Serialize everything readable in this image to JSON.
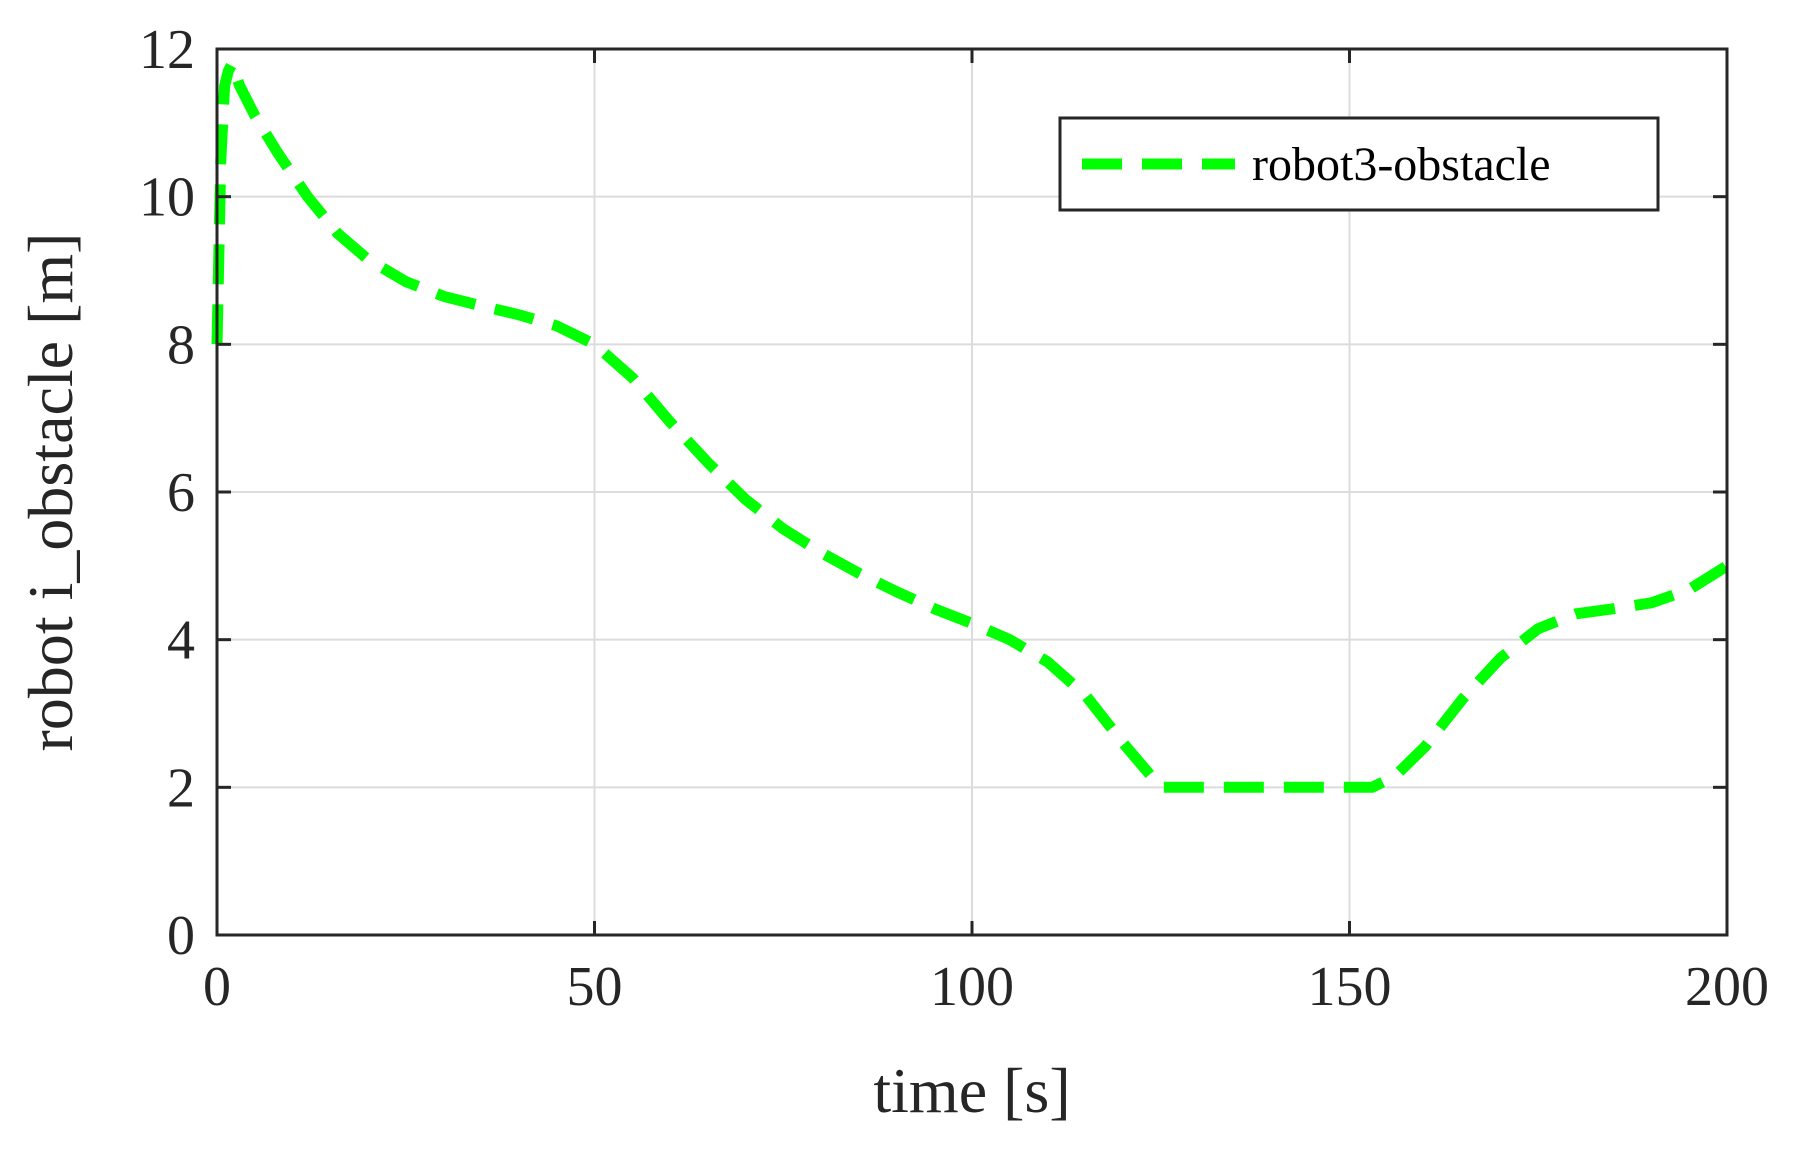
{
  "chart_data": {
    "type": "line",
    "title": "",
    "xlabel": "time [s]",
    "ylabel": "robot i_obstacle [m]",
    "xlim": [
      0,
      200
    ],
    "ylim": [
      0,
      12
    ],
    "xticks": [
      "0",
      "50",
      "100",
      "150",
      "200"
    ],
    "yticks": [
      "0",
      "2",
      "4",
      "6",
      "8",
      "10",
      "12"
    ],
    "grid": true,
    "legend": {
      "placement": "top-right",
      "entries": [
        "robot3-obstacle"
      ]
    },
    "series": [
      {
        "name": "robot3-obstacle",
        "color": "#00ff00",
        "line_style": "dashed",
        "x": [
          0,
          0.5,
          1,
          1.5,
          2,
          3,
          5,
          8,
          12,
          16,
          20,
          25,
          30,
          35,
          40,
          45,
          50,
          55,
          60,
          65,
          70,
          75,
          80,
          85,
          90,
          95,
          100,
          105,
          110,
          115,
          120,
          125,
          127,
          130,
          140,
          150,
          153,
          156,
          160,
          165,
          170,
          175,
          180,
          185,
          190,
          195,
          200
        ],
        "y": [
          8.0,
          10.5,
          11.5,
          11.7,
          11.8,
          11.5,
          11.1,
          10.6,
          10.0,
          9.5,
          9.15,
          8.85,
          8.65,
          8.52,
          8.4,
          8.25,
          8.0,
          7.55,
          6.95,
          6.4,
          5.9,
          5.5,
          5.18,
          4.9,
          4.65,
          4.42,
          4.22,
          4.0,
          3.7,
          3.25,
          2.6,
          2.0,
          2.0,
          2.0,
          2.0,
          2.0,
          2.0,
          2.15,
          2.55,
          3.2,
          3.75,
          4.15,
          4.35,
          4.42,
          4.5,
          4.68,
          5.0
        ]
      }
    ]
  }
}
